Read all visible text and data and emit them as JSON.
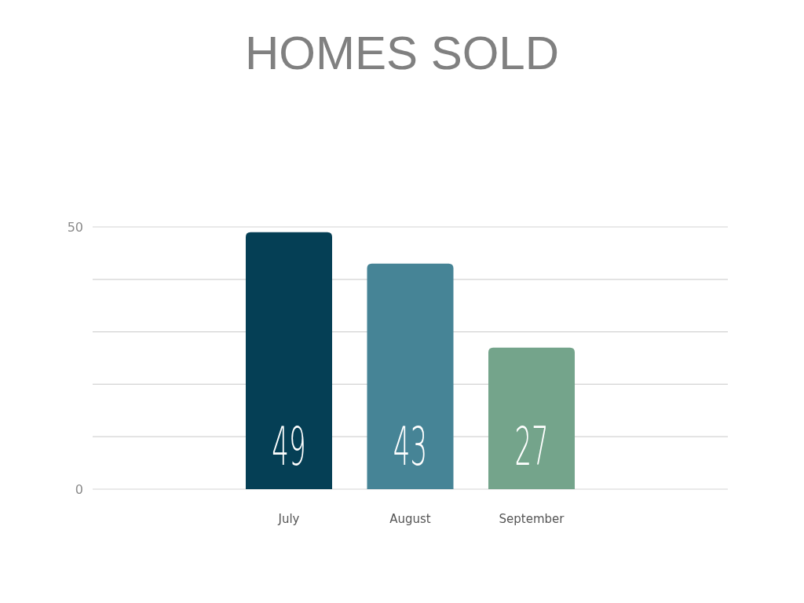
{
  "chart_data": {
    "type": "bar",
    "title": "HOMES SOLD",
    "categories": [
      "July",
      "August",
      "September"
    ],
    "values": [
      49,
      43,
      27
    ],
    "colors": [
      "#053f55",
      "#468496",
      "#74a48b"
    ],
    "ylim": [
      0,
      50
    ],
    "yticks": [
      0,
      {
        "value": 10,
        "label": null
      },
      {
        "value": 20,
        "label": null
      },
      {
        "value": 30,
        "label": null
      },
      {
        "value": 40,
        "label": null
      },
      50
    ],
    "grid": "y",
    "data_labels": true
  }
}
